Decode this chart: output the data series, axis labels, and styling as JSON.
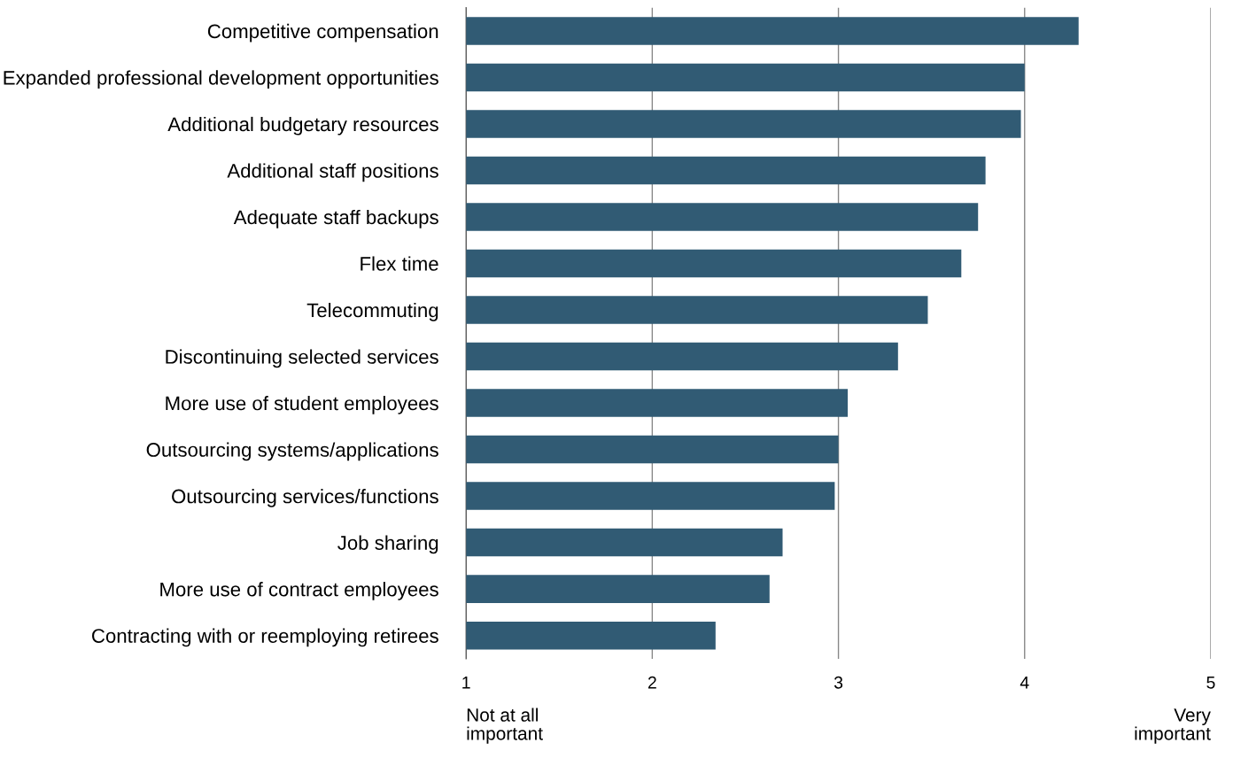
{
  "chart_data": {
    "type": "bar",
    "orientation": "horizontal",
    "categories": [
      "Competitive compensation",
      "Expanded professional development opportunities",
      "Additional budgetary resources",
      "Additional staff positions",
      "Adequate staff backups",
      "Flex time",
      "Telecommuting",
      "Discontinuing selected services",
      "More use of student employees",
      "Outsourcing systems/applications",
      "Outsourcing services/functions",
      "Job sharing",
      "More use of contract employees",
      "Contracting with or reemploying retirees"
    ],
    "values": [
      4.29,
      4.0,
      3.98,
      3.79,
      3.75,
      3.66,
      3.48,
      3.32,
      3.05,
      3.0,
      2.98,
      2.7,
      2.63,
      2.34
    ],
    "color": "#315b74",
    "xlim": [
      1,
      5
    ],
    "xticks": [
      1,
      2,
      3,
      4,
      5
    ],
    "grid": "x",
    "annotations": [
      "Not at all\nimportant",
      "Very\nimportant"
    ]
  }
}
